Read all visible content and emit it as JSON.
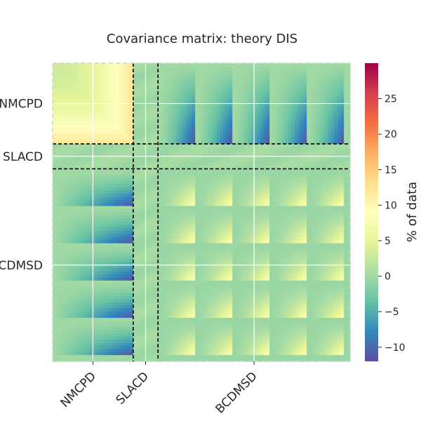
{
  "chart_data": {
    "type": "heatmap",
    "title": "Covariance matrix: theory DIS",
    "x_tick_labels": [
      "NMCPD",
      "SLACD",
      "BCDMSD"
    ],
    "y_tick_labels": [
      "NMCPD",
      "SLACD",
      "BCDMSD"
    ],
    "datasets": [
      {
        "name": "NMCPD",
        "points": 26
      },
      {
        "name": "SLACD",
        "points": 8
      },
      {
        "name": "BCDMSD",
        "points": 62
      }
    ],
    "colorbar": {
      "label": "% of data",
      "range": [
        -12,
        30
      ],
      "ticks": [
        -10,
        -5,
        0,
        5,
        10,
        15,
        20,
        25
      ],
      "tick_labels": [
        "−10",
        "−5",
        "0",
        "5",
        "10",
        "15",
        "20",
        "25"
      ],
      "colormap": "Spectral_r",
      "colors": [
        "#5e4fa2",
        "#3288bd",
        "#66c2a5",
        "#abdda4",
        "#e6f598",
        "#ffffbf",
        "#fee08b",
        "#fdae61",
        "#f46d43",
        "#d53e4f",
        "#9e0142"
      ]
    },
    "block_pattern": {
      "nmcpd_block_peak": 12,
      "bcdmsd_block_peak": 8,
      "cross_block_min": -11,
      "slacd_level": 0
    },
    "grid": true,
    "dashed_separators": true
  }
}
